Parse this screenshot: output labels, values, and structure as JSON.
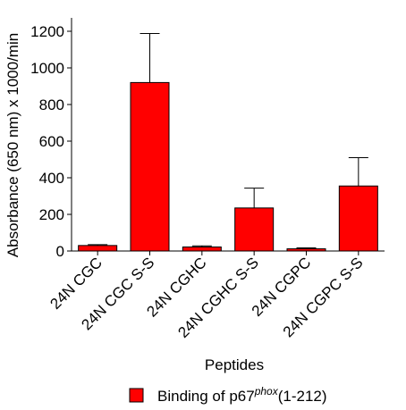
{
  "chart_data": {
    "type": "bar",
    "categories": [
      "24N CGC",
      "24N CGC S-S",
      "24N CGHC",
      "24N CGHC S-S",
      "24N CGPC",
      "24N CGPC S-S"
    ],
    "series": [
      {
        "name": "Binding of p67phox(1-212)",
        "values": [
          30,
          920,
          22,
          235,
          12,
          355
        ],
        "error": [
          5,
          268,
          6,
          108,
          5,
          155
        ]
      }
    ],
    "legend_parts": {
      "prefix": "Binding of p67",
      "superscript": "phox",
      "suffix": "(1-212)"
    },
    "xlabel": "Peptides",
    "ylabel": "Absorbance (650 nm) x 1000/min",
    "ylim": [
      0,
      1200
    ],
    "yticks": [
      0,
      200,
      400,
      600,
      800,
      1000,
      1200
    ],
    "grid": false,
    "legend_position": "bottom",
    "colors": {
      "bar": "#ff0000",
      "bar_edge": "#000000",
      "axis": "#000000"
    }
  }
}
